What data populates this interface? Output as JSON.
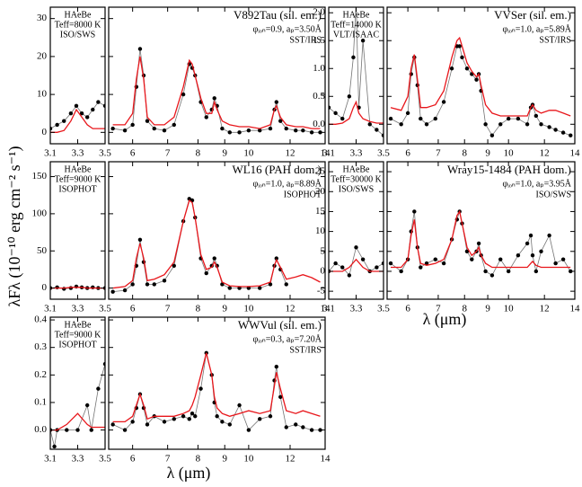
{
  "ylabel": "λFλ (10⁻¹⁰ erg cm⁻² s⁻¹)",
  "xlabel": "λ (μm)",
  "chart_data": [
    {
      "type": "line",
      "xlim": [
        3.1,
        3.5
      ],
      "xticks": [
        3.1,
        3.3,
        3.5
      ],
      "ylim": [
        -3,
        33
      ],
      "yticks": [
        0,
        10,
        20,
        30
      ],
      "annotations": [
        "HAeBe",
        "Teff=8000 K",
        "ISO/SWS"
      ],
      "x": [
        3.1,
        3.15,
        3.2,
        3.25,
        3.29,
        3.33,
        3.37,
        3.41,
        3.45,
        3.5
      ],
      "series": [
        {
          "color": "#000000",
          "markers": true,
          "values": [
            1,
            2,
            3,
            5,
            7,
            5,
            4,
            6,
            8,
            7
          ]
        },
        {
          "color": "#e8161b",
          "markers": false,
          "values": [
            0,
            0,
            0.5,
            3,
            6,
            4,
            2,
            1,
            1,
            1
          ]
        }
      ]
    },
    {
      "type": "line",
      "title": "V892Tau (sil. em.)",
      "xscale": "log",
      "xlim": [
        5.4,
        14
      ],
      "xticks": [
        6,
        7,
        8,
        9,
        10,
        12,
        14
      ],
      "annotations": [
        "φᵢₒₙ=0.9, aₚ=3.50Å",
        "SST/IRS"
      ],
      "x": [
        5.5,
        5.8,
        6.0,
        6.1,
        6.2,
        6.3,
        6.4,
        6.6,
        6.9,
        7.2,
        7.5,
        7.7,
        7.8,
        7.9,
        8.1,
        8.3,
        8.5,
        8.6,
        8.7,
        8.9,
        9.2,
        9.6,
        10.0,
        10.5,
        11.0,
        11.2,
        11.3,
        11.5,
        11.8,
        12.3,
        12.7,
        13.2,
        13.7
      ],
      "series": [
        {
          "color": "#000000",
          "markers": true,
          "values": [
            1,
            0.5,
            2,
            12,
            22,
            15,
            3,
            1,
            0.5,
            2,
            10,
            18,
            17,
            15,
            8,
            4,
            6,
            9,
            7,
            1,
            0,
            0,
            0.5,
            0.5,
            1,
            6,
            8,
            3,
            1,
            0.5,
            0.5,
            0,
            0
          ]
        },
        {
          "color": "#e8161b",
          "markers": false,
          "values": [
            2,
            2,
            5,
            14,
            20,
            14,
            4,
            2,
            2,
            4,
            12,
            19,
            18,
            15,
            9,
            5,
            5,
            8,
            6,
            3,
            2,
            1.5,
            1.5,
            1,
            2,
            6,
            7,
            4,
            2,
            1.5,
            1.5,
            1,
            1
          ]
        }
      ]
    },
    {
      "type": "line",
      "xlim": [
        3.1,
        3.5
      ],
      "xticks": [
        3.1,
        3.3,
        3.5
      ],
      "ylim": [
        -15,
        170
      ],
      "yticks": [
        0,
        50,
        100,
        150
      ],
      "annotations": [
        "HAeBe",
        "Teff=9000 K",
        "ISOPHOT"
      ],
      "x": [
        3.1,
        3.15,
        3.2,
        3.25,
        3.29,
        3.33,
        3.37,
        3.41,
        3.45,
        3.5
      ],
      "series": [
        {
          "color": "#000000",
          "markers": true,
          "values": [
            0,
            1,
            -1,
            0,
            2,
            1,
            0,
            1,
            0,
            0
          ]
        },
        {
          "color": "#e8161b",
          "markers": false,
          "values": [
            0,
            0,
            0,
            1,
            1,
            1,
            0,
            0,
            0,
            0
          ]
        }
      ]
    },
    {
      "type": "line",
      "title": "WL16 (PAH dom.)",
      "xscale": "log",
      "xlim": [
        5.4,
        14
      ],
      "xticks": [
        6,
        7,
        8,
        9,
        10,
        12,
        14
      ],
      "annotations": [
        "φᵢₒₙ=1.0, aₚ=8.89Å",
        "ISOPHOT"
      ],
      "x": [
        5.5,
        5.8,
        6.0,
        6.1,
        6.2,
        6.3,
        6.4,
        6.6,
        6.9,
        7.2,
        7.5,
        7.7,
        7.8,
        7.9,
        8.1,
        8.3,
        8.5,
        8.6,
        8.7,
        8.9,
        9.2,
        9.6,
        10.0,
        10.5,
        11.0,
        11.2,
        11.3,
        11.5,
        11.8,
        12.3,
        12.7,
        13.2,
        13.7
      ],
      "series": [
        {
          "color": "#000000",
          "markers": true,
          "values": [
            -5,
            -3,
            5,
            30,
            65,
            35,
            5,
            5,
            10,
            30,
            90,
            120,
            118,
            95,
            40,
            20,
            30,
            40,
            30,
            5,
            0,
            0,
            0,
            0,
            5,
            30,
            40,
            25,
            5,
            null,
            null,
            null,
            null
          ]
        },
        {
          "color": "#e8161b",
          "markers": false,
          "values": [
            0,
            2,
            10,
            40,
            60,
            40,
            10,
            12,
            18,
            35,
            90,
            118,
            115,
            95,
            45,
            25,
            28,
            35,
            28,
            8,
            3,
            2,
            2,
            3,
            8,
            30,
            38,
            28,
            12,
            15,
            18,
            14,
            8
          ]
        }
      ]
    },
    {
      "type": "line",
      "xlim": [
        3.1,
        3.5
      ],
      "xticks": [
        3.1,
        3.3,
        3.5
      ],
      "ylim": [
        -0.07,
        0.41
      ],
      "yticks": [
        {
          "value": 0,
          "label": "0.0"
        },
        0.1,
        0.2,
        0.3,
        0.4
      ],
      "annotations": [
        "HAeBe",
        "Teff=9000 K",
        "ISOPHOT"
      ],
      "x": [
        3.1,
        3.13,
        3.15,
        3.22,
        3.3,
        3.37,
        3.4,
        3.45,
        3.5
      ],
      "series": [
        {
          "color": "#000000",
          "markers": true,
          "values": [
            0,
            -0.06,
            0,
            0,
            0,
            0.09,
            0,
            0.15,
            0.24
          ]
        },
        {
          "color": "#e8161b",
          "markers": false,
          "values": [
            0,
            0,
            0,
            0.02,
            0.06,
            0.02,
            0.01,
            0.01,
            0.01
          ]
        }
      ]
    },
    {
      "type": "line",
      "title": "WWVul (sil. em.)",
      "xscale": "log",
      "xlim": [
        5.4,
        14
      ],
      "xticks": [
        6,
        7,
        8,
        9,
        10,
        12,
        14
      ],
      "annotations": [
        "φᵢₒₙ=0.3, aₚ=7.20Å",
        "SST/IRS"
      ],
      "x": [
        5.5,
        5.8,
        6.0,
        6.1,
        6.2,
        6.3,
        6.4,
        6.6,
        6.9,
        7.2,
        7.5,
        7.7,
        7.8,
        7.9,
        8.1,
        8.3,
        8.5,
        8.6,
        8.7,
        8.9,
        9.2,
        9.6,
        10.0,
        10.5,
        11.0,
        11.2,
        11.3,
        11.5,
        11.8,
        12.3,
        12.7,
        13.2,
        13.7
      ],
      "series": [
        {
          "color": "#000000",
          "markers": true,
          "values": [
            0.02,
            0,
            0.03,
            0.08,
            0.13,
            0.08,
            0.02,
            0.05,
            0.03,
            0.04,
            0.05,
            0.04,
            0.06,
            0.05,
            0.15,
            0.28,
            0.2,
            0.1,
            0.05,
            0.03,
            0.02,
            0.09,
            0,
            0.04,
            0.05,
            0.18,
            0.23,
            0.12,
            0.01,
            0.02,
            0.01,
            0,
            0
          ]
        },
        {
          "color": "#e8161b",
          "markers": false,
          "values": [
            0.03,
            0.03,
            0.05,
            0.09,
            0.13,
            0.09,
            0.04,
            0.05,
            0.05,
            0.05,
            0.06,
            0.07,
            0.09,
            0.12,
            0.2,
            0.28,
            0.2,
            0.12,
            0.08,
            0.06,
            0.05,
            0.06,
            0.07,
            0.06,
            0.07,
            0.16,
            0.21,
            0.15,
            0.07,
            0.06,
            0.07,
            0.06,
            0.05
          ]
        }
      ]
    },
    {
      "type": "line",
      "xlim": [
        3.1,
        3.5
      ],
      "xticks": [
        3.1,
        3.3,
        3.5
      ],
      "ylim": [
        -0.35,
        2.1
      ],
      "yticks": [
        {
          "value": 0,
          "label": "0.0"
        },
        0.5,
        {
          "value": 1,
          "label": "1.0"
        },
        1.5,
        {
          "value": 2,
          "label": "2.0"
        }
      ],
      "annotations": [
        "HAeBe",
        "Teff=14000 K",
        "VLT/ISAAC"
      ],
      "x": [
        3.1,
        3.15,
        3.2,
        3.25,
        3.28,
        3.3,
        3.32,
        3.35,
        3.4,
        3.45,
        3.5
      ],
      "series": [
        {
          "color": "#000000",
          "markers": true,
          "values": [
            0.3,
            0.2,
            0.1,
            0.5,
            1.2,
            2.2,
            0.3,
            1.5,
            0,
            -0.1,
            -0.2
          ]
        },
        {
          "color": "#e8161b",
          "markers": false,
          "values": [
            0,
            0,
            0.02,
            0.1,
            0.3,
            0.4,
            0.2,
            0.1,
            0.05,
            0.02,
            0.02
          ]
        }
      ]
    },
    {
      "type": "line",
      "title": "VVSer (sil. em.)",
      "xscale": "log",
      "xlim": [
        5.4,
        14
      ],
      "xticks": [
        6,
        7,
        8,
        9,
        10,
        12,
        14
      ],
      "annotations": [
        "φᵢₒₙ=1.0, aₚ=5.89Å",
        "SST/IRS"
      ],
      "x": [
        5.5,
        5.8,
        6.0,
        6.1,
        6.2,
        6.3,
        6.4,
        6.6,
        6.9,
        7.2,
        7.5,
        7.7,
        7.8,
        7.9,
        8.1,
        8.3,
        8.5,
        8.6,
        8.7,
        8.9,
        9.2,
        9.6,
        10.0,
        10.5,
        11.0,
        11.2,
        11.3,
        11.5,
        11.8,
        12.3,
        12.7,
        13.2,
        13.7
      ],
      "series": [
        {
          "color": "#000000",
          "markers": true,
          "values": [
            0.1,
            0,
            0.2,
            0.9,
            1.2,
            0.7,
            0.1,
            0,
            0.1,
            0.4,
            1.0,
            1.4,
            1.4,
            1.2,
            1.0,
            0.9,
            0.8,
            0.9,
            0.6,
            0,
            -0.2,
            0,
            0.1,
            0.1,
            0,
            0.3,
            0.35,
            0.15,
            0,
            -0.05,
            -0.1,
            -0.15,
            -0.2
          ]
        },
        {
          "color": "#e8161b",
          "markers": false,
          "values": [
            0.3,
            0.25,
            0.5,
            1.0,
            1.25,
            0.8,
            0.3,
            0.3,
            0.35,
            0.6,
            1.2,
            1.5,
            1.55,
            1.4,
            1.1,
            0.95,
            0.85,
            0.9,
            0.7,
            0.35,
            0.2,
            0.15,
            0.15,
            0.15,
            0.15,
            0.3,
            0.35,
            0.25,
            0.2,
            0.25,
            0.25,
            0.2,
            0.15
          ]
        }
      ]
    },
    {
      "type": "line",
      "xlim": [
        3.1,
        3.5
      ],
      "xticks": [
        3.1,
        3.3,
        3.5
      ],
      "ylim": [
        -7,
        27.5
      ],
      "yticks": [
        -5,
        0,
        5,
        10,
        15,
        20,
        25
      ],
      "annotations": [
        "HAeBe",
        "Teff=30000 K",
        "ISO/SWS"
      ],
      "x": [
        3.1,
        3.15,
        3.2,
        3.25,
        3.3,
        3.35,
        3.4,
        3.45,
        3.5
      ],
      "series": [
        {
          "color": "#000000",
          "markers": true,
          "values": [
            0,
            2,
            1,
            -1,
            6,
            3,
            0,
            1,
            2
          ]
        },
        {
          "color": "#e8161b",
          "markers": false,
          "values": [
            0,
            0,
            0,
            1,
            3,
            1,
            0,
            0,
            0
          ]
        }
      ]
    },
    {
      "type": "line",
      "title": "Wray15-1484 (PAH dom.)",
      "xscale": "log",
      "xlim": [
        5.4,
        14
      ],
      "xticks": [
        6,
        7,
        8,
        9,
        10,
        12,
        14
      ],
      "annotations": [
        "φᵢₒₙ=1.0, aₚ=3.95Å",
        "ISO/SWS"
      ],
      "x": [
        5.5,
        5.8,
        6.0,
        6.1,
        6.2,
        6.3,
        6.4,
        6.6,
        6.9,
        7.2,
        7.5,
        7.7,
        7.8,
        7.9,
        8.1,
        8.3,
        8.5,
        8.6,
        8.7,
        8.9,
        9.2,
        9.6,
        10.0,
        10.5,
        11.0,
        11.2,
        11.3,
        11.5,
        11.8,
        12.3,
        12.7,
        13.2,
        13.7
      ],
      "series": [
        {
          "color": "#000000",
          "markers": true,
          "values": [
            2,
            0,
            3,
            10,
            15,
            6,
            1,
            2,
            3,
            2,
            8,
            13,
            15,
            12,
            5,
            3,
            5,
            7,
            4,
            0,
            -1,
            3,
            0,
            4,
            7,
            9,
            4,
            0,
            5,
            9,
            2,
            3,
            0
          ]
        },
        {
          "color": "#e8161b",
          "markers": false,
          "values": [
            1,
            1,
            3,
            9,
            13,
            6,
            2,
            1.5,
            2,
            3,
            8,
            14,
            15,
            12,
            6,
            4,
            5,
            6,
            4,
            2,
            1,
            1,
            1,
            1,
            1,
            2,
            2.5,
            1.5,
            1,
            1,
            1,
            1,
            1
          ]
        }
      ]
    }
  ]
}
